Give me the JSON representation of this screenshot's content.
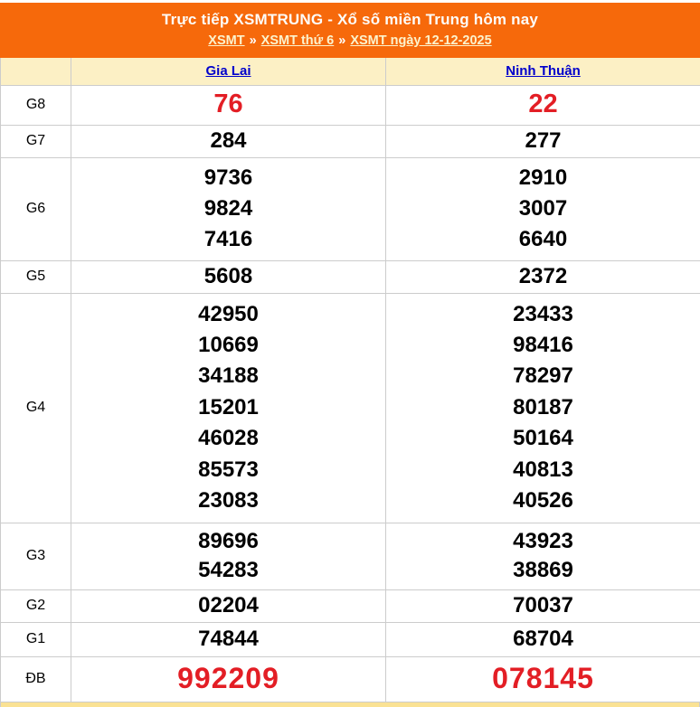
{
  "header": {
    "title": "Trực tiếp XSMTRUNG - Xổ số miền Trung hôm nay",
    "breadcrumb": {
      "separator": "»",
      "links": [
        {
          "label": "XSMT"
        },
        {
          "label": "XSMT thứ 6"
        },
        {
          "label": "XSMT ngày 12-12-2025"
        }
      ]
    }
  },
  "results_table": {
    "province_columns": [
      {
        "label": "Gia Lai"
      },
      {
        "label": "Ninh Thuận"
      }
    ],
    "rows": [
      {
        "prize": "G8",
        "highlight": true,
        "gia_lai": [
          "76"
        ],
        "ninh_thuan": [
          "22"
        ]
      },
      {
        "prize": "G7",
        "highlight": false,
        "gia_lai": [
          "284"
        ],
        "ninh_thuan": [
          "277"
        ]
      },
      {
        "prize": "G6",
        "highlight": false,
        "gia_lai": [
          "9736",
          "9824",
          "7416"
        ],
        "ninh_thuan": [
          "2910",
          "3007",
          "6640"
        ]
      },
      {
        "prize": "G5",
        "highlight": false,
        "gia_lai": [
          "5608"
        ],
        "ninh_thuan": [
          "2372"
        ]
      },
      {
        "prize": "G4",
        "highlight": false,
        "gia_lai": [
          "42950",
          "10669",
          "34188",
          "15201",
          "46028",
          "85573",
          "23083"
        ],
        "ninh_thuan": [
          "23433",
          "98416",
          "78297",
          "80187",
          "50164",
          "40813",
          "40526"
        ]
      },
      {
        "prize": "G3",
        "highlight": false,
        "gia_lai": [
          "89696",
          "54283"
        ],
        "ninh_thuan": [
          "43923",
          "38869"
        ]
      },
      {
        "prize": "G2",
        "highlight": false,
        "gia_lai": [
          "02204"
        ],
        "ninh_thuan": [
          "70037"
        ]
      },
      {
        "prize": "G1",
        "highlight": false,
        "gia_lai": [
          "74844"
        ],
        "ninh_thuan": [
          "68704"
        ]
      },
      {
        "prize": "ĐB",
        "highlight": true,
        "gia_lai": [
          "992209"
        ],
        "ninh_thuan": [
          "078145"
        ]
      }
    ]
  },
  "colors": {
    "header_orange": "#f6690b",
    "header_cream": "#fcf0c5",
    "link_blue": "#0000cc",
    "highlight_red": "#e31e25",
    "number_black": "#000000",
    "border_gray": "#cccccc",
    "bottom_strip_yellow": "#fae294"
  }
}
